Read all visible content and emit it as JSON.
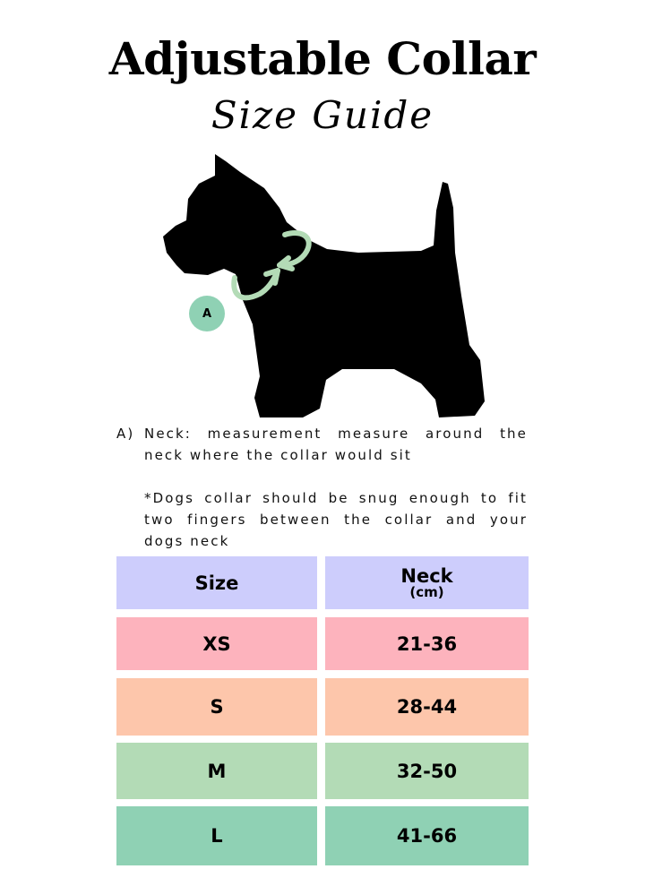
{
  "header": {
    "title": "Adjustable Collar",
    "subtitle": "Size Guide"
  },
  "diagram": {
    "badge_label": "A",
    "accent_color": "#8fd1b4",
    "collar_arrow_color": "#b3dbb6",
    "icon": "dog-silhouette"
  },
  "description": {
    "item_marker": "A)",
    "item_text": "Neck: measurement measure around the neck where the collar would sit",
    "note": "*Dogs collar should be snug enough to fit two fingers between the collar and your dogs neck"
  },
  "size_table": {
    "headers": {
      "size": "Size",
      "neck": "Neck",
      "neck_unit": "(cm)",
      "color": "#cdcdfc"
    },
    "rows": [
      {
        "size": "XS",
        "neck": "21-36",
        "color": "#fdb3bd"
      },
      {
        "size": "S",
        "neck": "28-44",
        "color": "#fdc6ab"
      },
      {
        "size": "M",
        "neck": "32-50",
        "color": "#b3dbb6"
      },
      {
        "size": "L",
        "neck": "41-66",
        "color": "#8fd1b4"
      }
    ]
  }
}
